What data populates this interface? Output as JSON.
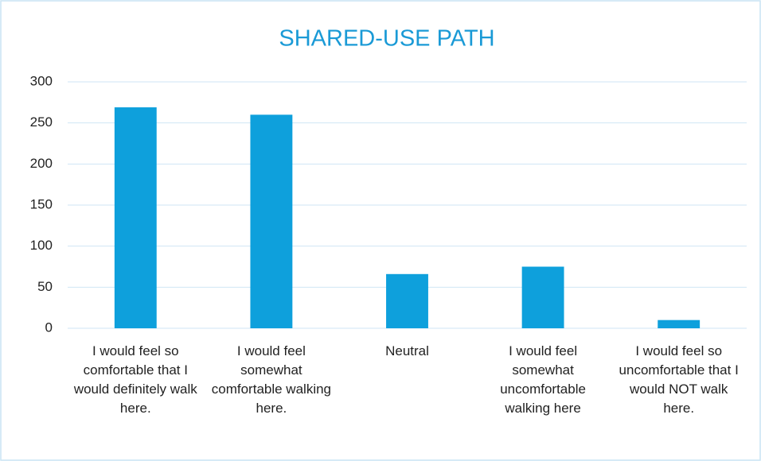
{
  "chart_data": {
    "type": "bar",
    "title": "SHARED-USE PATH",
    "categories": [
      "I would feel so comfortable that I would definitely walk here.",
      "I would feel somewhat comfortable walking here.",
      "Neutral",
      "I would feel somewhat uncomfortable walking here",
      "I would feel so uncomfortable that I would NOT walk here."
    ],
    "values": [
      269,
      260,
      66,
      75,
      10
    ],
    "color": "#0ea0dc",
    "ylim": [
      0,
      300
    ],
    "yticks": [
      0,
      50,
      100,
      150,
      200,
      250,
      300
    ],
    "grid": true
  }
}
